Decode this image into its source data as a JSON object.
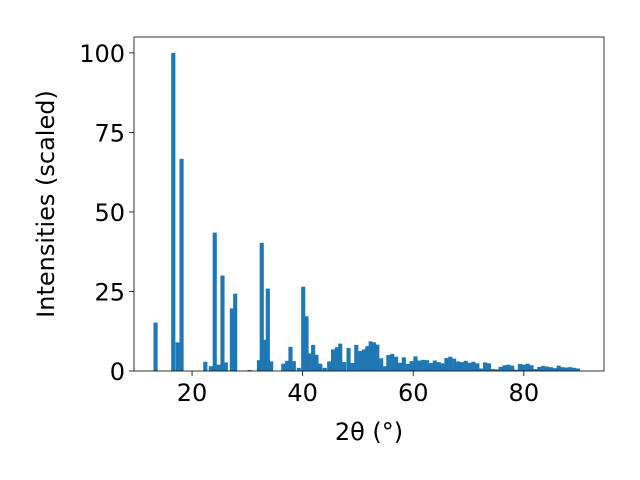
{
  "chart_data": {
    "type": "bar",
    "xlabel": "2θ (°)",
    "ylabel": "Intensities (scaled)",
    "xlim": [
      9.5,
      94.5
    ],
    "ylim": [
      0,
      105
    ],
    "x_ticks": [
      20,
      40,
      60,
      80
    ],
    "y_ticks": [
      0,
      25,
      50,
      75,
      100
    ],
    "bar_width": 0.75,
    "grid": false,
    "bar_color": "#1f77b4",
    "x": [
      13.4,
      16.6,
      17.4,
      18.1,
      22.4,
      23.4,
      24.1,
      24.8,
      25.5,
      26.1,
      27.2,
      27.8,
      30.4,
      32.1,
      32.6,
      33.2,
      33.7,
      34.3,
      36.5,
      37.2,
      37.8,
      38.4,
      39.3,
      40.1,
      40.7,
      41.2,
      41.9,
      42.5,
      43.2,
      44.0,
      44.8,
      45.5,
      46.2,
      46.8,
      47.5,
      48.3,
      49.0,
      49.7,
      50.4,
      51.1,
      51.7,
      52.3,
      52.9,
      53.5,
      54.2,
      54.8,
      55.5,
      56.2,
      56.9,
      57.6,
      58.3,
      59.0,
      59.7,
      60.4,
      61.1,
      61.8,
      62.5,
      63.2,
      63.9,
      64.6,
      65.3,
      66.0,
      66.7,
      67.4,
      68.1,
      68.8,
      69.5,
      70.2,
      70.9,
      71.6,
      72.3,
      73.0,
      73.7,
      74.4,
      75.1,
      75.8,
      76.5,
      77.2,
      77.9,
      78.6,
      79.3,
      80.0,
      80.7,
      81.4,
      82.1,
      82.8,
      83.5,
      84.2,
      84.9,
      85.6,
      86.3,
      87.0,
      87.7,
      88.4,
      89.1,
      89.8
    ],
    "values": [
      15.2,
      100.0,
      9.0,
      66.7,
      2.9,
      1.5,
      43.5,
      2.0,
      30.0,
      2.7,
      19.7,
      24.3,
      0.3,
      3.4,
      40.3,
      9.8,
      25.9,
      3.0,
      2.3,
      3.2,
      7.6,
      3.1,
      1.0,
      26.5,
      17.2,
      5.5,
      8.2,
      5.1,
      2.3,
      1.0,
      3.0,
      6.8,
      7.5,
      8.6,
      2.8,
      7.2,
      2.5,
      8.2,
      6.3,
      6.8,
      7.8,
      9.3,
      9.0,
      8.3,
      4.0,
      1.5,
      5.0,
      5.4,
      4.5,
      2.6,
      4.3,
      2.2,
      3.1,
      4.6,
      3.3,
      3.5,
      3.4,
      2.5,
      3.3,
      2.8,
      2.4,
      4.1,
      4.5,
      3.9,
      3.0,
      2.8,
      3.2,
      2.6,
      2.9,
      2.4,
      0.8,
      2.7,
      2.4,
      0.6,
      0.5,
      1.3,
      1.8,
      2.0,
      1.7,
      0.4,
      2.2,
      2.0,
      2.3,
      1.8,
      0.6,
      1.3,
      1.6,
      1.4,
      1.2,
      0.9,
      1.7,
      1.2,
      1.1,
      1.2,
      1.0,
      0.8
    ]
  }
}
